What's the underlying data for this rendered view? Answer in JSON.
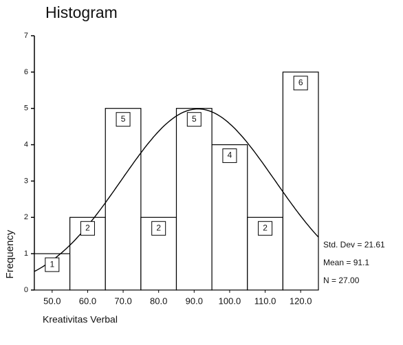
{
  "chart_data": {
    "type": "histogram",
    "title": "Histogram",
    "x_label": "Kreativitas Verbal",
    "y_label": "Frequency",
    "bins": [
      45,
      55,
      65,
      75,
      85,
      95,
      105,
      115,
      125
    ],
    "values": [
      1,
      2,
      5,
      2,
      5,
      4,
      2,
      6
    ],
    "color": "#ffffff",
    "xlim": [
      45,
      125
    ],
    "xticks": [
      {
        "value": 50,
        "label": "50.0"
      },
      {
        "value": 60,
        "label": "60.0"
      },
      {
        "value": 70,
        "label": "70.0"
      },
      {
        "value": 80,
        "label": "80.0"
      },
      {
        "value": 90,
        "label": "90.0"
      },
      {
        "value": 100,
        "label": "100.0"
      },
      {
        "value": 110,
        "label": "110.0"
      },
      {
        "value": 120,
        "label": "120.0"
      }
    ],
    "ylim": [
      0,
      7
    ],
    "yticks": [
      0,
      1,
      2,
      3,
      4,
      5,
      6,
      7
    ],
    "stats": {
      "std_dev": {
        "value": 21.61,
        "label": "Std. Dev = 21.61"
      },
      "mean": {
        "value": 91.1,
        "label": "Mean = 91.1"
      },
      "n": {
        "value": 27,
        "label": "N = 27.00"
      }
    },
    "normal_curve": true
  }
}
